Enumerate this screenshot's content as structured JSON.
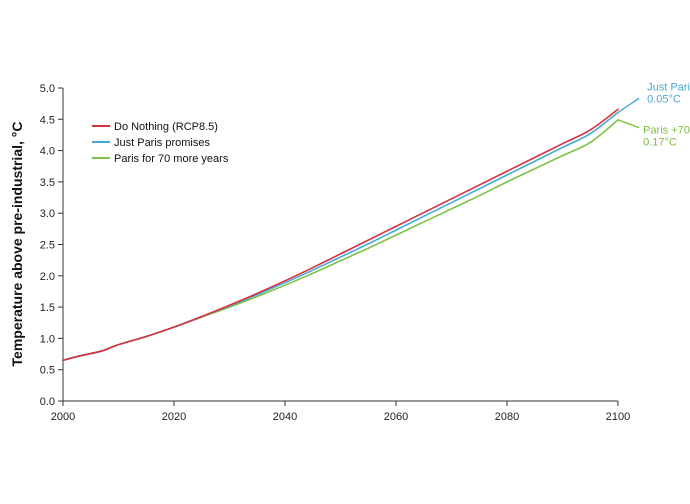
{
  "chart_data": {
    "type": "line",
    "title": "",
    "xlabel": "",
    "ylabel": "Temperature above pre-industrial, °C",
    "xlim": [
      2000,
      2100
    ],
    "ylim": [
      0,
      5
    ],
    "x_ticks": [
      "2000",
      "2020",
      "2040",
      "2060",
      "2080",
      "2100"
    ],
    "y_ticks": [
      "0.0",
      "0.5",
      "1.0",
      "1.5",
      "2.0",
      "2.5",
      "3.0",
      "3.5",
      "4.0",
      "4.5",
      "5.0"
    ],
    "grid": false,
    "legend_position": "top-left",
    "x": [
      2000,
      2003,
      2007,
      2010,
      2015,
      2020,
      2025,
      2030,
      2035,
      2040,
      2045,
      2050,
      2055,
      2060,
      2065,
      2070,
      2075,
      2080,
      2085,
      2090,
      2095,
      2100
    ],
    "series": [
      {
        "name": "Do Nothing (RCP8.5)",
        "color": "#d9313e",
        "values": [
          0.65,
          0.72,
          0.8,
          0.9,
          1.03,
          1.18,
          1.35,
          1.53,
          1.72,
          1.92,
          2.13,
          2.35,
          2.57,
          2.79,
          3.01,
          3.23,
          3.45,
          3.67,
          3.89,
          4.11,
          4.33,
          4.66
        ]
      },
      {
        "name": "Just Paris promises",
        "color": "#42a9d9",
        "values": [
          0.65,
          0.72,
          0.8,
          0.9,
          1.03,
          1.18,
          1.35,
          1.52,
          1.7,
          1.89,
          2.09,
          2.3,
          2.51,
          2.73,
          2.95,
          3.17,
          3.39,
          3.61,
          3.83,
          4.05,
          4.27,
          4.61
        ]
      },
      {
        "name": "Paris for 70 more years",
        "color": "#7dc242",
        "values": [
          0.65,
          0.72,
          0.8,
          0.9,
          1.03,
          1.18,
          1.34,
          1.5,
          1.67,
          1.85,
          2.04,
          2.24,
          2.44,
          2.65,
          2.86,
          3.07,
          3.28,
          3.5,
          3.71,
          3.92,
          4.13,
          4.49
        ]
      }
    ],
    "annotations": [
      {
        "lines": [
          "Just Paris",
          "0.05°C"
        ],
        "color": "#42a9d9",
        "series": 1,
        "pos": [
          2102,
          4.9
        ]
      },
      {
        "lines": [
          "Paris +70",
          "0.17°C"
        ],
        "color": "#7dc242",
        "series": 2,
        "pos": [
          2102,
          4.27
        ]
      }
    ],
    "axis_color": "#333333"
  }
}
